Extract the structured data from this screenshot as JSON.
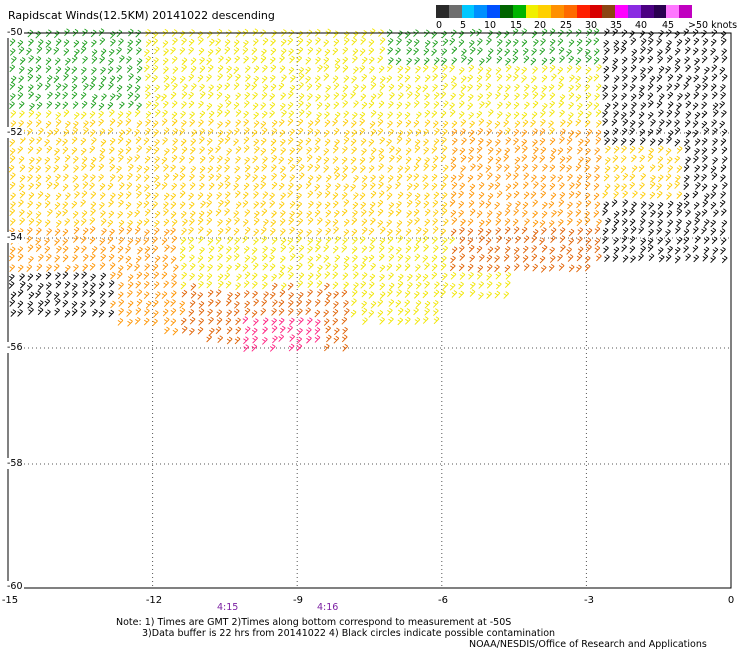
{
  "title": "Rapidscat Winds(12.5KM) 20141022 descending",
  "colorbar": {
    "colors": [
      "#2a2a2a",
      "#6e6e6e",
      "#00c8ff",
      "#0090ff",
      "#0050ff",
      "#006400",
      "#00b400",
      "#f0f000",
      "#ffd000",
      "#ff9000",
      "#ff6a00",
      "#ff2000",
      "#d80000",
      "#8b4513",
      "#ff00ff",
      "#8a2be2",
      "#4b0082",
      "#2a0050",
      "#ff77ff",
      "#c000c0"
    ],
    "labels": [
      "0",
      "5",
      "10",
      "15",
      "20",
      "25",
      "30",
      "35",
      "40",
      "45",
      ">50 knots"
    ]
  },
  "axes": {
    "lat_labels": [
      "-50",
      "-52",
      "-54",
      "-56",
      "-58",
      "-60"
    ],
    "lon_labels": [
      "-15",
      "-12",
      "-9",
      "-6",
      "-3",
      "0"
    ]
  },
  "times": [
    "4:15",
    "4:16"
  ],
  "notes": {
    "line1": "Note: 1) Times are GMT 2)Times along bottom correspond to measurement at -50S",
    "line2": "3)Data buffer is 22 hrs from 20141022 4) Black circles indicate possible contamination",
    "line3": "NOAA/NESDIS/Office of Research and Applications"
  },
  "speed_colors": {
    "green": "#1a9e1a",
    "yellow": "#f2e600",
    "gold": "#ffcc00",
    "orange": "#ff9400",
    "dark_orange": "#e06000",
    "red": "#e00000",
    "magenta": "#ff2080",
    "black": "#000000"
  }
}
